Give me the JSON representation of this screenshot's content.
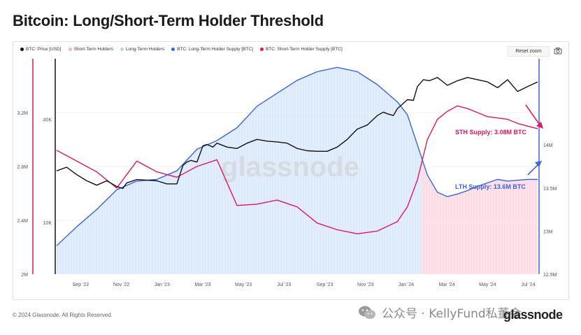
{
  "title": "Bitcoin: Long/Short-Term Holder Threshold",
  "legend": [
    {
      "label": "BTC: Price [USD]",
      "color": "#111111"
    },
    {
      "label": "Short-Term Holders",
      "color": "#f6b3c4"
    },
    {
      "label": "Long-Term Holders",
      "color": "#b7d3f7"
    },
    {
      "label": "BTC: Long-Term Holder Supply [BTC]",
      "color": "#3b63e0"
    },
    {
      "label": "BTC: Short-Term Holder Supply [BTC]",
      "color": "#e3165f"
    }
  ],
  "toolbar": {
    "reset_label": "Reset zoom"
  },
  "footer": {
    "copyright": "© 2024 Glassnode. All Rights Reserved.",
    "wechat_text": "公众号 · KellyFund私董会",
    "brand": "glassnode"
  },
  "watermark": "glassnode",
  "annotations": {
    "sth": "STH Supply: 3.08M BTC",
    "lth": "LTH Supply: 13.6M BTC"
  },
  "colors": {
    "price": "#111111",
    "lth": "#3b63e0",
    "sth": "#e3165f",
    "lth_area": "#dbe9fb",
    "sth_area": "#fbdbe4"
  },
  "chart_data": {
    "type": "line",
    "x_ticks": [
      "Sep '22",
      "Nov '22",
      "Jan '23",
      "Mar '23",
      "May '23",
      "Jul '23",
      "Sep '23",
      "Nov '23",
      "Jan '24",
      "Mar '24",
      "May '24",
      "Jul '24"
    ],
    "y_left_sth_ticks": [
      "2M",
      "2.4M",
      "2.8M",
      "3.2M"
    ],
    "y_left_price_ticks": [
      "10K",
      "40K"
    ],
    "y_right_lth_ticks": [
      "12.5M",
      "13M",
      "13.5M",
      "14M"
    ],
    "ylim_sth": [
      2000000,
      3600000
    ],
    "ylim_lth": [
      12500000,
      15000000
    ],
    "x_range": [
      0,
      24
    ],
    "regime_boundary_month": 18.2,
    "series": [
      {
        "name": "BTC: Price [USD]",
        "axis": "price",
        "x": [
          0,
          0.5,
          1,
          1.5,
          2,
          2.5,
          3,
          3.3,
          3.5,
          4,
          5,
          5.5,
          6,
          6.3,
          6.5,
          6.7,
          7,
          7.3,
          7.5,
          7.8,
          8,
          8.5,
          9,
          9.5,
          10,
          10.5,
          11,
          11.5,
          12,
          12.5,
          13,
          13.5,
          14,
          14.5,
          15,
          15.5,
          16,
          16.3,
          16.5,
          16.8,
          17,
          17.5,
          17.8,
          18,
          18.3,
          18.6,
          19,
          19.5,
          20,
          20.5,
          21,
          21.5,
          22,
          22.5,
          23,
          23.5,
          24
        ],
        "y": [
          20000,
          21000,
          19000,
          17500,
          16500,
          17500,
          16200,
          15800,
          17000,
          17800,
          17500,
          16800,
          16800,
          21500,
          22500,
          23000,
          22500,
          28000,
          28500,
          27500,
          29000,
          27500,
          27000,
          29000,
          30500,
          29800,
          29500,
          29000,
          27000,
          26200,
          26000,
          26000,
          27500,
          30500,
          35000,
          37000,
          42000,
          44000,
          43000,
          42000,
          46000,
          52000,
          51500,
          62000,
          68000,
          67000,
          70000,
          63000,
          67000,
          70000,
          68000,
          66000,
          61000,
          68000,
          58000,
          62000,
          66000
        ]
      },
      {
        "name": "BTC: Long-Term Holder Supply [BTC]",
        "axis": "lth",
        "x": [
          0,
          1,
          2,
          3,
          4,
          5,
          6,
          7,
          8,
          9,
          10,
          11,
          12,
          13,
          14,
          15,
          16,
          17,
          17.5,
          18,
          18.5,
          19,
          19.5,
          20,
          20.5,
          21,
          21.5,
          22,
          22.5,
          23,
          23.5,
          24
        ],
        "y": [
          12830000,
          13050000,
          13250000,
          13480000,
          13580000,
          13600000,
          13700000,
          13950000,
          14050000,
          14200000,
          14450000,
          14600000,
          14750000,
          14850000,
          14900000,
          14850000,
          14700000,
          14500000,
          14350000,
          14000000,
          13650000,
          13450000,
          13400000,
          13430000,
          13470000,
          13520000,
          13560000,
          13600000,
          13580000,
          13590000,
          13600000,
          13600000
        ]
      },
      {
        "name": "BTC: Short-Term Holder Supply [BTC]",
        "axis": "sth",
        "x": [
          0,
          1,
          2,
          3,
          4,
          5,
          6,
          7,
          8,
          9,
          10,
          11,
          12,
          13,
          14,
          15,
          16,
          17,
          17.5,
          18,
          18.5,
          19,
          19.5,
          20,
          20.5,
          21,
          21.5,
          22,
          22.5,
          23,
          23.5,
          24
        ],
        "y": [
          2920000,
          2840000,
          2760000,
          2640000,
          2840000,
          2760000,
          2720000,
          2800000,
          2850000,
          2510000,
          2520000,
          2550000,
          2500000,
          2380000,
          2330000,
          2300000,
          2320000,
          2390000,
          2500000,
          2700000,
          3000000,
          3150000,
          3210000,
          3250000,
          3230000,
          3200000,
          3170000,
          3160000,
          3150000,
          3120000,
          3100000,
          3080000
        ]
      }
    ]
  }
}
